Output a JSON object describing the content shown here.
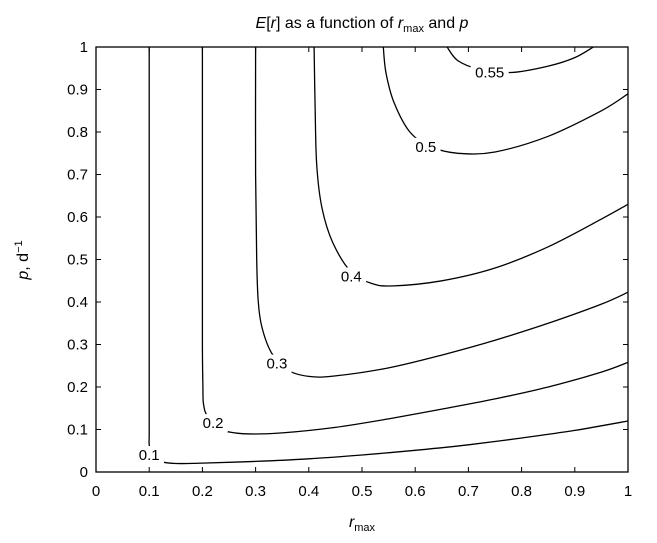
{
  "chart_data": {
    "type": "line",
    "title": {
      "prefix": "E",
      "bracket_open": "[",
      "var": "r",
      "bracket_close": "]",
      "middle": " as a function of ",
      "var2": "r",
      "var2_sub": "max",
      "and": " and ",
      "var3": "p"
    },
    "xlabel": {
      "var": "r",
      "sub": "max"
    },
    "ylabel": {
      "var": "p",
      "unit": ", d",
      "sup": "−1"
    },
    "xlim": [
      0,
      1
    ],
    "ylim": [
      0,
      1
    ],
    "x_ticks": [
      "0",
      "0.1",
      "0.2",
      "0.3",
      "0.4",
      "0.5",
      "0.6",
      "0.7",
      "0.8",
      "0.9",
      "1"
    ],
    "y_ticks": [
      "0",
      "0.1",
      "0.2",
      "0.3",
      "0.4",
      "0.5",
      "0.6",
      "0.7",
      "0.8",
      "0.9",
      "1"
    ],
    "grid": false,
    "series": [
      {
        "name": "0.1",
        "label_at": [
          0.1,
          0.04
        ],
        "points": [
          [
            0.1,
            1.0
          ],
          [
            0.1,
            0.5
          ],
          [
            0.1,
            0.2
          ],
          [
            0.1,
            0.09
          ],
          [
            0.1,
            0.065
          ],
          [
            0.105,
            0.04
          ],
          [
            0.12,
            0.025
          ],
          [
            0.15,
            0.02
          ],
          [
            0.2,
            0.021
          ],
          [
            0.3,
            0.025
          ],
          [
            0.4,
            0.031
          ],
          [
            0.5,
            0.04
          ],
          [
            0.6,
            0.051
          ],
          [
            0.7,
            0.064
          ],
          [
            0.8,
            0.08
          ],
          [
            0.9,
            0.098
          ],
          [
            1.0,
            0.12
          ]
        ]
      },
      {
        "name": "0.2",
        "label_at": [
          0.22,
          0.115
        ],
        "points": [
          [
            0.2,
            1.0
          ],
          [
            0.2,
            0.6
          ],
          [
            0.2,
            0.3
          ],
          [
            0.201,
            0.2
          ],
          [
            0.202,
            0.16
          ],
          [
            0.21,
            0.13
          ],
          [
            0.235,
            0.1
          ],
          [
            0.28,
            0.09
          ],
          [
            0.35,
            0.092
          ],
          [
            0.45,
            0.105
          ],
          [
            0.55,
            0.125
          ],
          [
            0.65,
            0.148
          ],
          [
            0.75,
            0.172
          ],
          [
            0.85,
            0.2
          ],
          [
            0.95,
            0.235
          ],
          [
            1.0,
            0.258
          ]
        ]
      },
      {
        "name": "0.3",
        "label_at": [
          0.34,
          0.255
        ],
        "points": [
          [
            0.3,
            1.0
          ],
          [
            0.3,
            0.7
          ],
          [
            0.302,
            0.5
          ],
          [
            0.305,
            0.4
          ],
          [
            0.312,
            0.34
          ],
          [
            0.33,
            0.28
          ],
          [
            0.36,
            0.24
          ],
          [
            0.4,
            0.225
          ],
          [
            0.45,
            0.226
          ],
          [
            0.55,
            0.245
          ],
          [
            0.65,
            0.275
          ],
          [
            0.75,
            0.31
          ],
          [
            0.85,
            0.35
          ],
          [
            0.95,
            0.395
          ],
          [
            1.0,
            0.423
          ]
        ]
      },
      {
        "name": "0.4",
        "label_at": [
          0.48,
          0.46
        ],
        "points": [
          [
            0.41,
            1.0
          ],
          [
            0.412,
            0.85
          ],
          [
            0.415,
            0.72
          ],
          [
            0.425,
            0.62
          ],
          [
            0.445,
            0.54
          ],
          [
            0.48,
            0.47
          ],
          [
            0.52,
            0.443
          ],
          [
            0.56,
            0.438
          ],
          [
            0.65,
            0.45
          ],
          [
            0.75,
            0.48
          ],
          [
            0.85,
            0.53
          ],
          [
            0.95,
            0.595
          ],
          [
            1.0,
            0.63
          ]
        ]
      },
      {
        "name": "0.5",
        "label_at": [
          0.62,
          0.765
        ],
        "points": [
          [
            0.54,
            1.0
          ],
          [
            0.545,
            0.94
          ],
          [
            0.56,
            0.87
          ],
          [
            0.59,
            0.8
          ],
          [
            0.63,
            0.765
          ],
          [
            0.68,
            0.75
          ],
          [
            0.75,
            0.753
          ],
          [
            0.85,
            0.79
          ],
          [
            0.95,
            0.85
          ],
          [
            1.0,
            0.89
          ]
        ]
      },
      {
        "name": "0.55",
        "label_at": [
          0.74,
          0.94
        ],
        "points": [
          [
            0.66,
            1.0
          ],
          [
            0.68,
            0.968
          ],
          [
            0.72,
            0.948
          ],
          [
            0.78,
            0.94
          ],
          [
            0.85,
            0.955
          ],
          [
            0.9,
            0.975
          ],
          [
            0.935,
            1.0
          ]
        ]
      }
    ]
  }
}
